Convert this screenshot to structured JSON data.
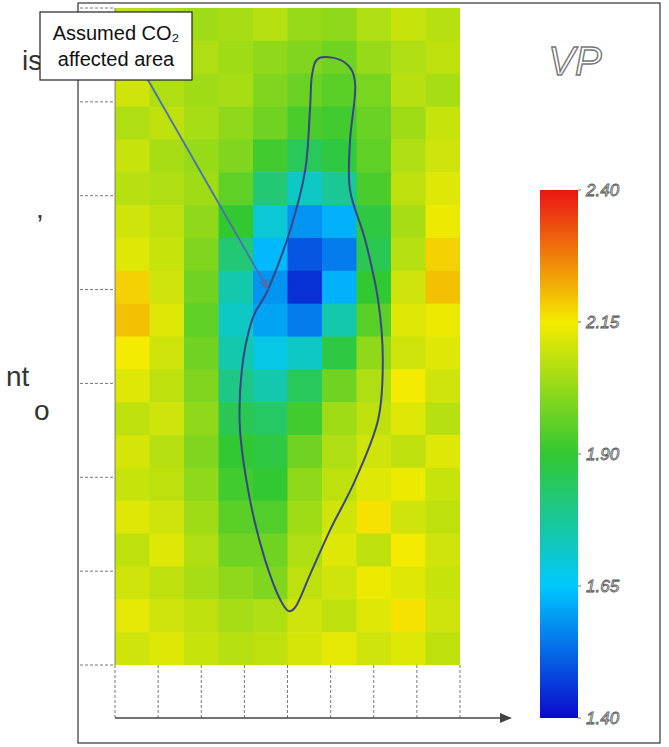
{
  "chart_data": {
    "type": "heatmap",
    "xlim": [
      0,
      8
    ],
    "xticks": [
      0,
      1,
      2,
      3,
      4,
      5,
      6,
      7,
      8
    ],
    "ylim": [
      0,
      7
    ],
    "yticks": [
      0,
      1,
      2,
      3,
      4,
      5,
      6,
      7
    ],
    "tick_labels": false,
    "cells": [
      [
        2.08,
        2.06,
        2.04,
        2.05,
        2.07,
        2.03,
        2.02,
        2.06,
        2.09,
        2.07
      ],
      [
        2.07,
        2.05,
        2.06,
        2.04,
        2.02,
        2.0,
        1.98,
        2.03,
        2.06,
        2.08
      ],
      [
        2.1,
        2.06,
        2.04,
        2.05,
        2.0,
        1.97,
        1.95,
        1.99,
        2.07,
        2.05
      ],
      [
        2.06,
        2.08,
        2.05,
        2.02,
        1.98,
        1.93,
        1.92,
        1.97,
        2.04,
        2.09
      ],
      [
        2.09,
        2.05,
        2.03,
        2.0,
        1.92,
        1.85,
        1.88,
        1.96,
        2.06,
        2.1
      ],
      [
        2.07,
        2.06,
        2.04,
        1.96,
        1.82,
        1.72,
        1.78,
        1.93,
        2.08,
        2.12
      ],
      [
        2.1,
        2.08,
        2.02,
        1.9,
        1.7,
        1.58,
        1.62,
        1.88,
        2.05,
        2.14
      ],
      [
        2.12,
        2.09,
        2.0,
        1.82,
        1.63,
        1.5,
        1.55,
        1.86,
        2.07,
        2.18
      ],
      [
        2.18,
        2.1,
        1.98,
        1.75,
        1.58,
        1.45,
        1.62,
        1.9,
        2.1,
        2.2
      ],
      [
        2.2,
        2.12,
        1.96,
        1.72,
        1.6,
        1.55,
        1.75,
        1.95,
        2.12,
        2.14
      ],
      [
        2.15,
        2.1,
        1.98,
        1.75,
        1.68,
        1.72,
        1.88,
        2.02,
        2.1,
        2.12
      ],
      [
        2.12,
        2.08,
        2.0,
        1.8,
        1.75,
        1.85,
        1.98,
        2.06,
        2.15,
        2.1
      ],
      [
        2.08,
        2.1,
        2.02,
        1.86,
        1.84,
        1.92,
        2.04,
        2.08,
        2.12,
        2.07
      ],
      [
        2.11,
        2.07,
        2.0,
        1.9,
        1.88,
        1.98,
        2.06,
        2.1,
        2.08,
        2.12
      ],
      [
        2.09,
        2.08,
        2.02,
        1.92,
        1.9,
        2.02,
        2.08,
        2.12,
        2.14,
        2.09
      ],
      [
        2.12,
        2.1,
        2.04,
        1.95,
        1.94,
        2.04,
        2.1,
        2.16,
        2.1,
        2.08
      ],
      [
        2.08,
        2.12,
        2.06,
        1.98,
        1.98,
        2.06,
        2.12,
        2.08,
        2.15,
        2.1
      ],
      [
        2.1,
        2.08,
        2.05,
        2.02,
        2.0,
        2.08,
        2.1,
        2.14,
        2.12,
        2.09
      ],
      [
        2.13,
        2.1,
        2.08,
        2.05,
        2.06,
        2.1,
        2.08,
        2.12,
        2.16,
        2.1
      ],
      [
        2.1,
        2.12,
        2.09,
        2.07,
        2.08,
        2.11,
        2.13,
        2.1,
        2.12,
        2.08
      ]
    ],
    "colorbar": {
      "title": "VP",
      "range": [
        1.4,
        2.4
      ],
      "ticks": [
        {
          "value": 2.4,
          "label": "2.40"
        },
        2.15,
        {
          "value": 1.9,
          "label": "1.90"
        },
        1.65,
        {
          "value": 1.4,
          "label": "1.40"
        }
      ]
    },
    "annotation": {
      "text": [
        "Assumed CO₂",
        "affected area"
      ],
      "outline": {
        "x": [
          4.75,
          5.33,
          5.57,
          5.45,
          5.45,
          5.8,
          6.1,
          6.21,
          6.1,
          5.57,
          4.99,
          4.52,
          4.17,
          3.9,
          3.48,
          3.13,
          2.9,
          2.94,
          3.18,
          3.55,
          4.06,
          4.41,
          4.52,
          4.57
        ],
        "y": [
          6.47,
          6.42,
          6.18,
          5.59,
          5.06,
          4.53,
          3.89,
          3.25,
          2.61,
          1.97,
          1.44,
          0.96,
          0.61,
          0.64,
          1.12,
          1.76,
          2.5,
          3.14,
          3.68,
          4.0,
          4.63,
          5.27,
          5.91,
          6.29
        ]
      }
    }
  },
  "slide_text": [
    "is",
    ",",
    "nt",
    "o"
  ]
}
